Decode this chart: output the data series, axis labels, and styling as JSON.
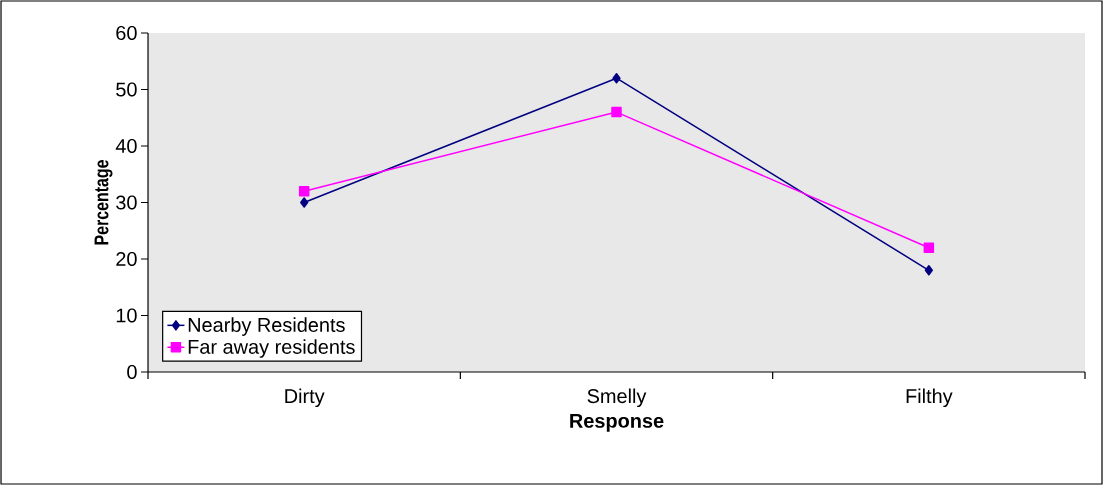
{
  "chart_data": {
    "type": "line",
    "xlabel": "Response",
    "ylabel": "Percentage",
    "categories": [
      "Dirty",
      "Smelly",
      "Filthy"
    ],
    "series": [
      {
        "name": "Nearby Residents",
        "color": "#000080",
        "marker": "diamond",
        "values": [
          30,
          52,
          18
        ]
      },
      {
        "name": "Far away residents",
        "color": "#ff00ff",
        "marker": "square",
        "values": [
          32,
          46,
          22
        ]
      }
    ],
    "ylim": [
      0,
      60
    ],
    "yticks": [
      0,
      10,
      20,
      30,
      40,
      50,
      60
    ],
    "grid": false,
    "legend": "bottom left"
  }
}
